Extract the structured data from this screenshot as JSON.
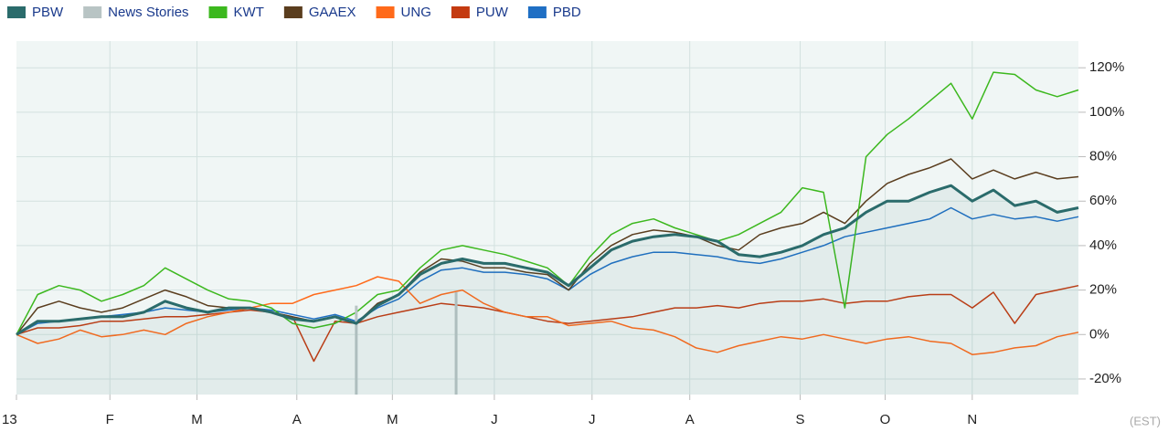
{
  "chart_data": {
    "type": "line",
    "x": [
      0,
      1,
      2,
      3,
      4,
      5,
      6,
      7,
      8,
      9,
      10,
      11,
      12,
      13,
      14,
      15,
      16,
      17,
      18,
      19,
      20,
      21,
      22,
      23,
      24,
      25,
      26,
      27,
      28,
      29,
      30,
      31,
      32,
      33,
      34,
      35,
      36,
      37,
      38,
      39,
      40,
      41,
      42,
      43,
      44,
      45,
      46,
      47,
      48,
      49,
      50
    ],
    "xlim": [
      0,
      50
    ],
    "xticks": [
      {
        "value": 0,
        "label": "13"
      },
      {
        "value": 4.4,
        "label": "F"
      },
      {
        "value": 8.5,
        "label": "M"
      },
      {
        "value": 13.2,
        "label": "A"
      },
      {
        "value": 17.7,
        "label": "M"
      },
      {
        "value": 22.5,
        "label": "J"
      },
      {
        "value": 27.1,
        "label": "J"
      },
      {
        "value": 31.7,
        "label": "A"
      },
      {
        "value": 36.9,
        "label": "S"
      },
      {
        "value": 40.9,
        "label": "O"
      },
      {
        "value": 45.0,
        "label": "N"
      }
    ],
    "timezone_label": "(EST)",
    "ylim": [
      -27,
      132
    ],
    "yticks": [
      {
        "value": -20,
        "label": "-20%"
      },
      {
        "value": 0,
        "label": "0%"
      },
      {
        "value": 20,
        "label": "20%"
      },
      {
        "value": 40,
        "label": "40%"
      },
      {
        "value": 60,
        "label": "60%"
      },
      {
        "value": 80,
        "label": "80%"
      },
      {
        "value": 100,
        "label": "100%"
      },
      {
        "value": 120,
        "label": "120%"
      }
    ],
    "grid": true,
    "series": [
      {
        "name": "PBW",
        "color": "#2a6b6b",
        "area": true,
        "values": [
          0,
          6,
          6,
          7,
          8,
          8,
          10,
          15,
          12,
          10,
          12,
          12,
          10,
          7,
          6,
          8,
          5,
          13,
          18,
          27,
          32,
          34,
          32,
          32,
          30,
          28,
          22,
          30,
          38,
          42,
          44,
          45,
          44,
          42,
          36,
          35,
          37,
          40,
          45,
          48,
          55,
          60,
          60,
          64,
          67,
          60,
          65,
          58,
          60,
          55,
          57
        ]
      },
      {
        "name": "News Stories",
        "color": "#b8c4c4",
        "kind": "bar",
        "x": [
          16,
          20.7
        ],
        "values": [
          13,
          19
        ]
      },
      {
        "name": "KWT",
        "color": "#3cb81e",
        "values": [
          0,
          18,
          22,
          20,
          15,
          18,
          22,
          30,
          25,
          20,
          16,
          15,
          12,
          5,
          3,
          5,
          10,
          18,
          20,
          30,
          38,
          40,
          38,
          36,
          33,
          30,
          22,
          35,
          45,
          50,
          52,
          48,
          45,
          42,
          45,
          50,
          55,
          66,
          64,
          12,
          80,
          90,
          97,
          105,
          113,
          97,
          118,
          117,
          110,
          107,
          110
        ]
      },
      {
        "name": "GAAEX",
        "color": "#5a3d1e",
        "values": [
          0,
          12,
          15,
          12,
          10,
          12,
          16,
          20,
          17,
          13,
          12,
          12,
          10,
          8,
          6,
          8,
          5,
          14,
          18,
          28,
          34,
          33,
          30,
          30,
          28,
          27,
          20,
          32,
          40,
          45,
          47,
          46,
          44,
          40,
          38,
          45,
          48,
          50,
          55,
          50,
          60,
          68,
          72,
          75,
          79,
          70,
          74,
          70,
          73,
          70,
          71
        ]
      },
      {
        "name": "UNG",
        "color": "#ff6a1a",
        "values": [
          0,
          -4,
          -2,
          2,
          -1,
          0,
          2,
          0,
          5,
          8,
          10,
          12,
          14,
          14,
          18,
          20,
          22,
          26,
          24,
          14,
          18,
          20,
          14,
          10,
          8,
          8,
          4,
          5,
          6,
          3,
          2,
          -1,
          -6,
          -8,
          -5,
          -3,
          -1,
          -2,
          0,
          -2,
          -4,
          -2,
          -1,
          -3,
          -4,
          -9,
          -8,
          -6,
          -5,
          -1,
          1
        ]
      },
      {
        "name": "PUW",
        "color": "#c43a10",
        "values": [
          0,
          3,
          3,
          4,
          6,
          6,
          7,
          8,
          8,
          9,
          10,
          11,
          10,
          8,
          -12,
          6,
          5,
          8,
          10,
          12,
          14,
          13,
          12,
          10,
          8,
          6,
          5,
          6,
          7,
          8,
          10,
          12,
          12,
          13,
          12,
          14,
          15,
          15,
          16,
          14,
          15,
          15,
          17,
          18,
          18,
          12,
          19,
          5,
          18,
          20,
          22
        ]
      },
      {
        "name": "PBD",
        "color": "#1f6fc4",
        "values": [
          0,
          5,
          6,
          7,
          8,
          9,
          10,
          12,
          11,
          10,
          11,
          12,
          11,
          9,
          7,
          9,
          6,
          12,
          16,
          24,
          29,
          30,
          28,
          28,
          27,
          25,
          20,
          27,
          32,
          35,
          37,
          37,
          36,
          35,
          33,
          32,
          34,
          37,
          40,
          44,
          46,
          48,
          50,
          52,
          57,
          52,
          54,
          52,
          53,
          51,
          53
        ]
      }
    ]
  }
}
